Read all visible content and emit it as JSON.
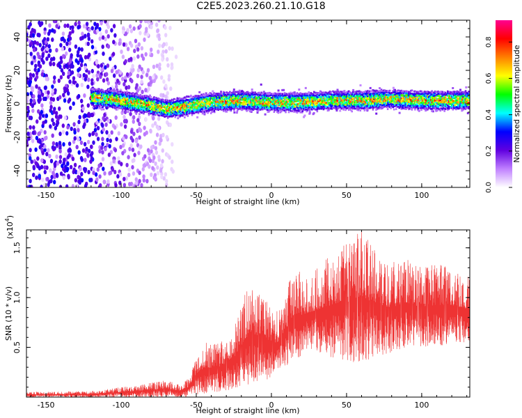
{
  "title": "C2E5.2023.260.21.10.G18",
  "chart_data": [
    {
      "type": "heatmap",
      "xlabel": "Height of straight line (km)",
      "ylabel": "Frequency (Hz)",
      "xlim": [
        -163,
        132
      ],
      "ylim": [
        -50,
        50
      ],
      "xticks": [
        -150,
        -100,
        -50,
        0,
        50,
        100
      ],
      "yticks": [
        -40,
        -20,
        0,
        20,
        40
      ],
      "colorbar": {
        "label": "Normalized spectral amplitude",
        "range": [
          0.0,
          0.92
        ],
        "ticks": [
          "0.0",
          "0.2",
          "0.4",
          "0.6",
          "0.8"
        ],
        "colormap": [
          "#ffffff",
          "#c080ff",
          "#6000e0",
          "#0000ff",
          "#00ffff",
          "#00ff00",
          "#ffff00",
          "#ff8000",
          "#ff0000",
          "#ff0090"
        ]
      },
      "ridge": {
        "description_x_start": -120,
        "x": [
          -120,
          -100,
          -80,
          -70,
          -60,
          -40,
          -20,
          0,
          20,
          40,
          60,
          80,
          100,
          120,
          132
        ],
        "frequency_hz": [
          4,
          2,
          -1,
          -3,
          -2,
          1,
          2,
          1,
          1,
          2,
          2,
          3,
          2,
          2,
          2
        ]
      },
      "noise_region": {
        "x_range": [
          -163,
          -63
        ],
        "frequency_range": [
          -50,
          50
        ]
      }
    },
    {
      "type": "line",
      "xlabel": "Height of straight line (km)",
      "ylabel": "SNR (10 * v/v)",
      "y_multiplier_label": "(x10",
      "y_multiplier_exp": "4",
      "xlim": [
        -163,
        132
      ],
      "ylim": [
        0,
        1.68
      ],
      "xticks": [
        -150,
        -100,
        -50,
        0,
        50,
        100
      ],
      "yticks": [
        "0.5",
        "1.0",
        "1.5"
      ],
      "series": [
        {
          "color": "#ee3333",
          "envelope_x": [
            -163,
            -120,
            -90,
            -70,
            -60,
            -55,
            -50,
            -45,
            -35,
            -25,
            -15,
            -5,
            0,
            5,
            10,
            15,
            20,
            25,
            30,
            40,
            50,
            60,
            70,
            80,
            90,
            100,
            110,
            120,
            132
          ],
          "envelope_min": [
            0.0,
            0.0,
            0.0,
            0.0,
            0.0,
            0.0,
            0.02,
            0.03,
            0.05,
            0.08,
            0.12,
            0.15,
            0.2,
            0.25,
            0.3,
            0.35,
            0.4,
            0.5,
            0.45,
            0.4,
            0.35,
            0.35,
            0.4,
            0.45,
            0.5,
            0.5,
            0.5,
            0.55,
            0.55
          ],
          "envelope_max": [
            0.05,
            0.06,
            0.12,
            0.17,
            0.12,
            0.2,
            0.45,
            0.55,
            0.55,
            0.7,
            1.15,
            1.05,
            0.9,
            0.85,
            1.1,
            1.3,
            1.25,
            1.2,
            1.3,
            1.45,
            1.55,
            1.68,
            1.45,
            1.35,
            1.4,
            1.3,
            1.35,
            1.3,
            1.2
          ]
        }
      ]
    }
  ]
}
